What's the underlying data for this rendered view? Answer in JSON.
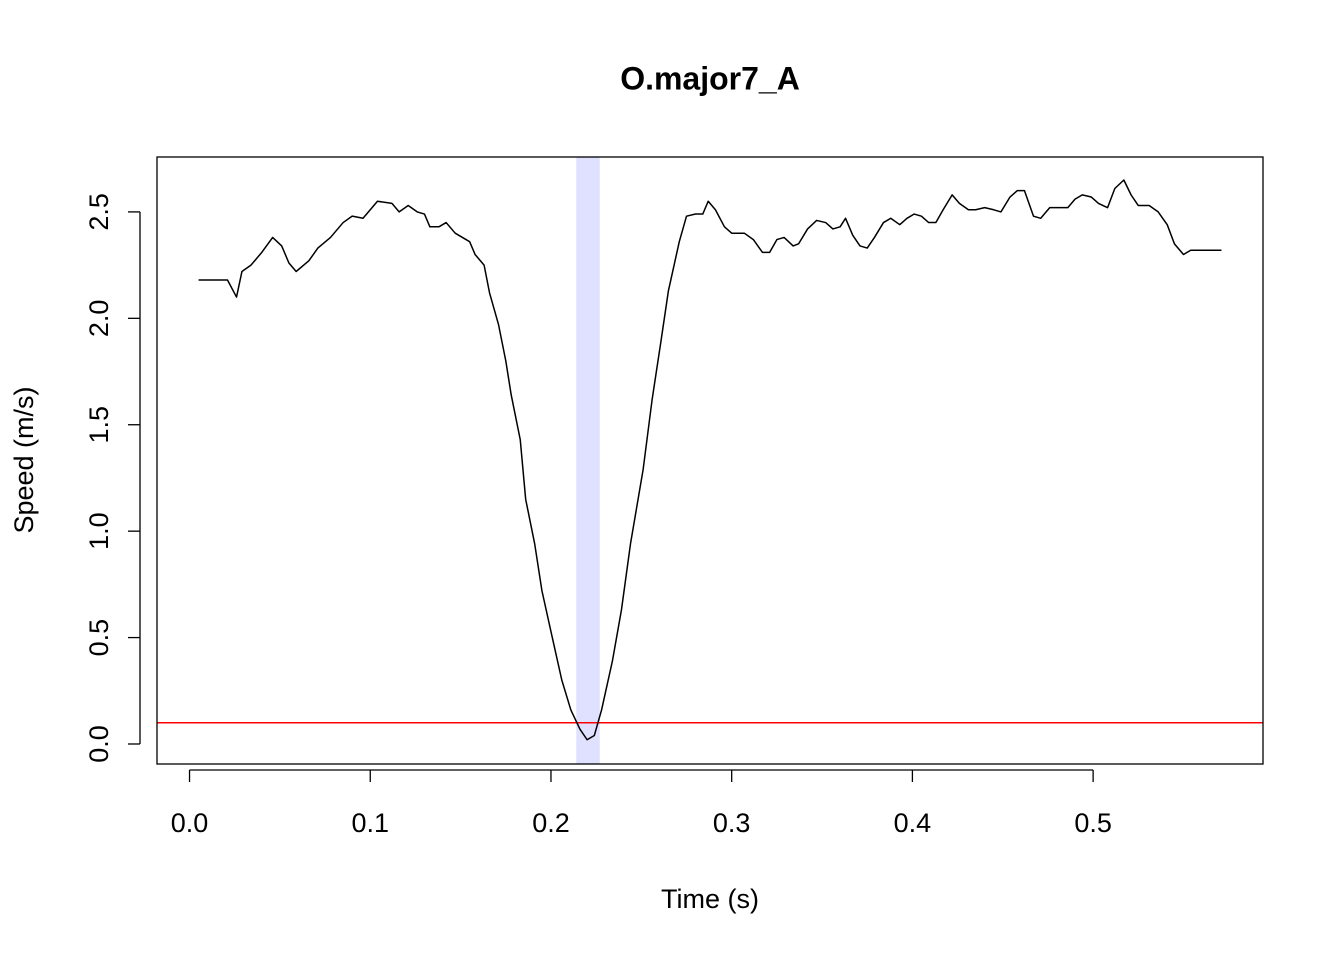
{
  "chart_data": {
    "type": "line",
    "title": "O.major7_A",
    "x_label": "Time (s)",
    "y_label": "Speed (m/s)",
    "x": [
      0.005,
      0.021,
      0.026,
      0.029,
      0.034,
      0.04,
      0.046,
      0.051,
      0.055,
      0.059,
      0.066,
      0.071,
      0.078,
      0.085,
      0.09,
      0.096,
      0.104,
      0.112,
      0.116,
      0.121,
      0.126,
      0.13,
      0.133,
      0.138,
      0.142,
      0.147,
      0.155,
      0.158,
      0.163,
      0.166,
      0.171,
      0.175,
      0.178,
      0.183,
      0.186,
      0.191,
      0.195,
      0.201,
      0.206,
      0.211,
      0.216,
      0.22,
      0.224,
      0.228,
      0.234,
      0.239,
      0.244,
      0.251,
      0.256,
      0.261,
      0.265,
      0.271,
      0.275,
      0.28,
      0.284,
      0.287,
      0.291,
      0.296,
      0.3,
      0.307,
      0.312,
      0.317,
      0.321,
      0.325,
      0.329,
      0.334,
      0.337,
      0.342,
      0.347,
      0.352,
      0.356,
      0.36,
      0.363,
      0.367,
      0.371,
      0.375,
      0.379,
      0.384,
      0.388,
      0.393,
      0.397,
      0.401,
      0.405,
      0.409,
      0.413,
      0.417,
      0.422,
      0.426,
      0.431,
      0.435,
      0.44,
      0.445,
      0.449,
      0.454,
      0.458,
      0.462,
      0.467,
      0.471,
      0.476,
      0.481,
      0.486,
      0.49,
      0.494,
      0.499,
      0.503,
      0.508,
      0.512,
      0.517,
      0.521,
      0.525,
      0.531,
      0.536,
      0.541,
      0.545,
      0.55,
      0.554,
      0.571
    ],
    "series": [
      {
        "name": "Speed",
        "color": "#000000",
        "values": [
          2.18,
          2.18,
          2.1,
          2.22,
          2.25,
          2.31,
          2.38,
          2.34,
          2.26,
          2.22,
          2.27,
          2.33,
          2.38,
          2.45,
          2.48,
          2.47,
          2.55,
          2.54,
          2.5,
          2.53,
          2.5,
          2.49,
          2.43,
          2.43,
          2.45,
          2.4,
          2.36,
          2.3,
          2.25,
          2.12,
          1.97,
          1.8,
          1.64,
          1.43,
          1.15,
          0.94,
          0.72,
          0.49,
          0.3,
          0.16,
          0.07,
          0.02,
          0.04,
          0.16,
          0.39,
          0.63,
          0.94,
          1.29,
          1.62,
          1.9,
          2.13,
          2.36,
          2.48,
          2.49,
          2.49,
          2.55,
          2.51,
          2.43,
          2.4,
          2.4,
          2.37,
          2.31,
          2.31,
          2.37,
          2.38,
          2.34,
          2.35,
          2.42,
          2.46,
          2.45,
          2.42,
          2.43,
          2.47,
          2.39,
          2.34,
          2.33,
          2.38,
          2.45,
          2.47,
          2.44,
          2.47,
          2.49,
          2.48,
          2.45,
          2.45,
          2.51,
          2.58,
          2.54,
          2.51,
          2.51,
          2.52,
          2.51,
          2.5,
          2.57,
          2.6,
          2.6,
          2.48,
          2.47,
          2.52,
          2.52,
          2.52,
          2.56,
          2.58,
          2.57,
          2.54,
          2.52,
          2.61,
          2.65,
          2.58,
          2.53,
          2.53,
          2.5,
          2.44,
          2.35,
          2.3,
          2.32,
          2.32
        ]
      }
    ],
    "threshold": {
      "value": 0.1,
      "color": "#ff0000"
    },
    "highlight": {
      "x": [
        0.214,
        0.227
      ],
      "color": "#e0e0ff"
    },
    "xlim": [
      -0.018,
      0.594
    ],
    "ylim": [
      -0.094,
      2.758
    ],
    "xticks": [
      {
        "value": 0,
        "label": "0.0"
      },
      0.1,
      0.2,
      0.3,
      0.4,
      0.5
    ],
    "yticks": [
      {
        "value": 0,
        "label": "0.0"
      },
      0.5,
      {
        "value": 1,
        "label": "1.0"
      },
      1.5,
      {
        "value": 2,
        "label": "2.0"
      },
      2.5
    ],
    "grid": false
  }
}
